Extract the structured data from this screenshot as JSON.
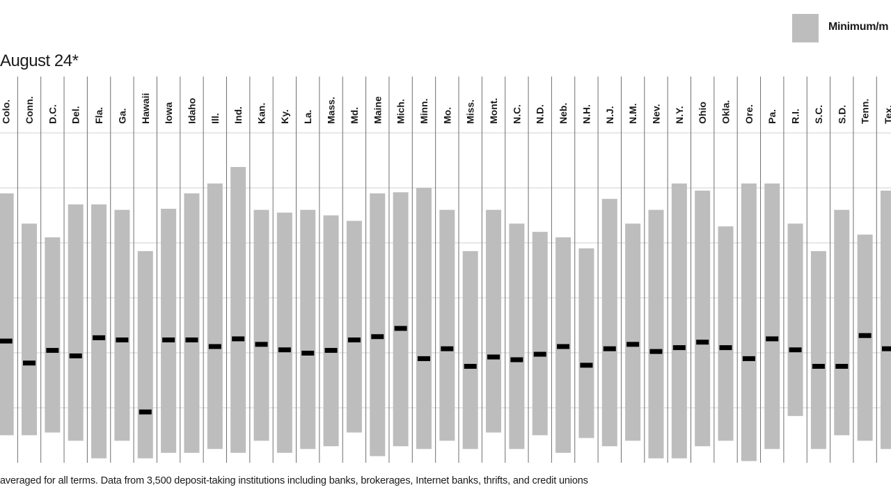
{
  "legend": {
    "label": "Minimum/m",
    "swatch_color": "#bdbdbd"
  },
  "title": "August 24*",
  "footnote": "averaged for all terms. Data from 3,500 deposit-taking institutions including banks, brokerages, Internet banks, thrifts, and credit unions",
  "chart_data": {
    "type": "bar",
    "subtype": "floating-range-with-average-marker",
    "title": "August 24*",
    "legend": [
      "Minimum/m"
    ],
    "grid": true,
    "categories": [
      "Colo.",
      "Conn.",
      "D.C.",
      "Del.",
      "Fla.",
      "Ga.",
      "Hawaii",
      "Iowa",
      "Idaho",
      "Ill.",
      "Ind.",
      "Kan.",
      "Ky.",
      "La.",
      "Mass.",
      "Md.",
      "Maine",
      "Mich.",
      "Minn.",
      "Mo.",
      "Miss.",
      "Mont.",
      "N.C.",
      "N.D.",
      "Neb.",
      "N.H.",
      "N.J.",
      "N.M.",
      "Nev.",
      "N.Y.",
      "Ohio",
      "Okla.",
      "Ore.",
      "Pa.",
      "R.I.",
      "S.C.",
      "S.D.",
      "Tenn.",
      "Tex."
    ],
    "gridlines": 6,
    "ylim": [
      0,
      6
    ],
    "max": [
      4.9,
      4.35,
      4.1,
      4.7,
      4.7,
      4.6,
      3.85,
      4.62,
      4.9,
      5.08,
      5.38,
      4.6,
      4.55,
      4.6,
      4.5,
      4.4,
      4.9,
      4.92,
      5.0,
      4.6,
      3.85,
      4.6,
      4.35,
      4.2,
      4.1,
      3.9,
      4.8,
      4.35,
      4.6,
      5.08,
      4.95,
      4.3,
      5.08,
      5.08,
      4.35,
      3.85,
      4.6,
      4.15,
      4.95
    ],
    "min": [
      0.5,
      0.5,
      0.55,
      0.4,
      0.08,
      0.4,
      0.08,
      0.18,
      0.18,
      0.25,
      0.18,
      0.4,
      0.18,
      0.25,
      0.3,
      0.55,
      0.12,
      0.3,
      0.25,
      0.4,
      0.25,
      0.55,
      0.25,
      0.5,
      0.18,
      0.45,
      0.3,
      0.4,
      0.08,
      0.08,
      0.3,
      0.4,
      0.03,
      0.25,
      0.85,
      0.25,
      0.5,
      0.4,
      0.25
    ],
    "average": [
      2.22,
      1.82,
      2.05,
      1.95,
      2.28,
      2.24,
      0.93,
      2.24,
      2.24,
      2.12,
      2.26,
      2.16,
      2.06,
      2.0,
      2.05,
      2.24,
      2.3,
      2.45,
      1.9,
      2.08,
      1.76,
      1.93,
      1.88,
      1.98,
      2.12,
      1.78,
      2.08,
      2.16,
      2.03,
      2.1,
      2.2,
      2.1,
      1.9,
      2.26,
      2.06,
      1.76,
      1.76,
      2.32,
      2.08
    ]
  },
  "colors": {
    "range_bar": "#bdbdbd",
    "average_marker": "#000000",
    "gridline": "#d0d0d0",
    "column_divider": "#6e6e6e"
  }
}
